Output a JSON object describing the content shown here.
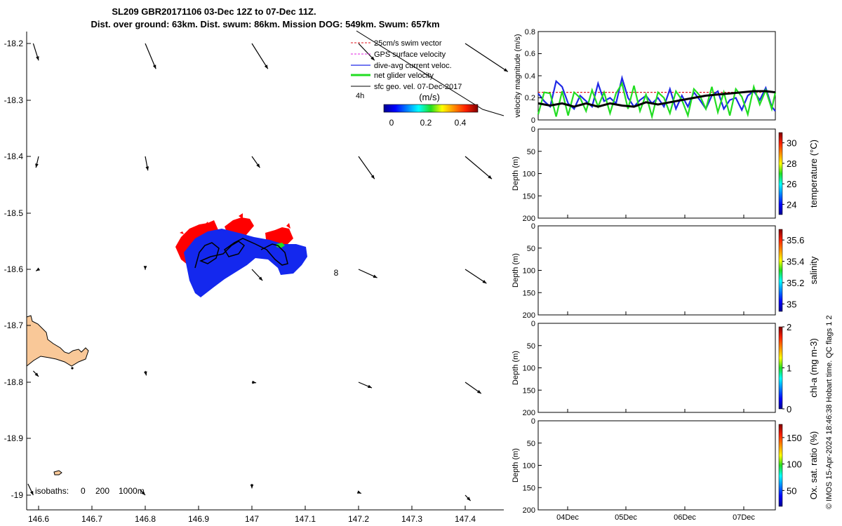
{
  "title": {
    "line1": "SL209 GBR20171106 03-Dec 12Z to 07-Dec 11Z.",
    "line2": "Dist. over ground: 63km. Dist. swum: 86km. Mission DOG: 549km. Swum: 657km"
  },
  "map": {
    "xticks": [
      "146.6",
      "146.7",
      "146.8",
      "146.9",
      "147",
      "147.1",
      "147.2",
      "147.3",
      "147.4"
    ],
    "yticks": [
      "-18.2",
      "-18.3",
      "-18.4",
      "-18.5",
      "-18.6",
      "-18.7",
      "-18.8",
      "-18.9",
      "-19"
    ],
    "xlim": [
      146.58,
      147.48
    ],
    "ylim": [
      -19.02,
      -18.17
    ],
    "legend": [
      {
        "label": "25cm/s swim vector",
        "color": "#e0141e"
      },
      {
        "label": "GPS surface velocity",
        "color": "#e020e0"
      },
      {
        "label": "dive-avg current veloc.",
        "color": "#1e28e6"
      },
      {
        "label": "net glider velocity",
        "color": "#22dd22"
      },
      {
        "label": "sfc geo. vel. 07-Dec-2017",
        "color": "#000000"
      }
    ],
    "time_mark": "4h",
    "colorbar_title": "(m/s)",
    "colorbar_ticks": [
      "0",
      "0.2",
      "0.4"
    ],
    "isobaths_label": "isobaths:",
    "isobaths_values": [
      "0",
      "200",
      "1000m"
    ],
    "point_label": "8",
    "land_color": "#f9c898",
    "arrow_grid": [
      [
        146.59,
        -18.2,
        0.01,
        -0.03
      ],
      [
        146.8,
        -18.2,
        0.02,
        -0.045
      ],
      [
        147.0,
        -18.2,
        0.03,
        -0.045
      ],
      [
        147.2,
        -18.2,
        0.03,
        -0.03
      ],
      [
        147.4,
        -18.2,
        0.08,
        -0.05
      ],
      [
        146.6,
        -18.4,
        -0.005,
        -0.02
      ],
      [
        146.8,
        -18.4,
        0.005,
        -0.025
      ],
      [
        147.0,
        -18.4,
        0.015,
        -0.02
      ],
      [
        147.2,
        -18.4,
        0.03,
        -0.04
      ],
      [
        147.4,
        -18.4,
        0.05,
        -0.04
      ],
      [
        146.6,
        -18.6,
        -0.005,
        -0.003
      ],
      [
        146.8,
        -18.6,
        0.0,
        -0.001
      ],
      [
        147.0,
        -18.6,
        0.02,
        -0.02
      ],
      [
        147.2,
        -18.6,
        0.035,
        -0.015
      ],
      [
        147.4,
        -18.6,
        0.04,
        -0.025
      ],
      [
        146.59,
        -18.78,
        0.01,
        -0.01
      ],
      [
        146.8,
        -18.78,
        0.002,
        -0.008
      ],
      [
        147.0,
        -18.8,
        0.008,
        -0.001
      ],
      [
        147.2,
        -18.8,
        0.025,
        -0.01
      ],
      [
        147.4,
        -18.8,
        0.03,
        -0.02
      ],
      [
        146.58,
        -18.98,
        0.01,
        -0.02
      ],
      [
        146.79,
        -18.99,
        0.01,
        -0.01
      ],
      [
        147.0,
        -18.98,
        0.0,
        -0.008
      ],
      [
        147.2,
        -18.995,
        0.005,
        -0.002
      ],
      [
        147.4,
        -19.0,
        0.01,
        -0.01
      ]
    ]
  },
  "velocity_panel": {
    "ylabel": "velocity magnitude (m/s)",
    "yticks": [
      "0",
      "0.2",
      "0.4",
      "0.6",
      "0.8"
    ],
    "ylim": [
      0,
      0.8
    ]
  },
  "depth_panels": [
    {
      "ylabel": "Depth (m)",
      "cb_label": "temperature (°C)",
      "cb_ticks": [
        "24",
        "26",
        "28",
        "30"
      ],
      "cb_range": [
        23,
        31
      ]
    },
    {
      "ylabel": "Depth (m)",
      "cb_label": "salinity",
      "cb_ticks": [
        "35",
        "35.2",
        "35.4",
        "35.6"
      ],
      "cb_range": [
        34.93,
        35.7
      ]
    },
    {
      "ylabel": "Depth (m)",
      "cb_label": "chl-a (mg m-3)",
      "cb_ticks": [
        "0",
        "1",
        "2"
      ],
      "cb_range": [
        0,
        2
      ]
    },
    {
      "ylabel": "Depth (m)",
      "cb_label": "Ox. sat. ratio (%)",
      "cb_ticks": [
        "50",
        "100",
        "150"
      ],
      "cb_range": [
        20,
        175
      ]
    }
  ],
  "depth_ticks": [
    "0",
    "50",
    "100",
    "150",
    "200"
  ],
  "xticks_time": [
    "04Dec",
    "05Dec",
    "06Dec",
    "07Dec"
  ],
  "credit": "© IMOS 15-Apr-2024 18:46:38 Hobart time. QC flags 1 2",
  "chart_data": [
    {
      "type": "line",
      "title": "",
      "ylabel": "velocity magnitude (m/s)",
      "ylim": [
        0,
        0.8
      ],
      "x_unit": "days since 03-Dec 12Z",
      "series": [
        {
          "name": "25cm/s swim vector",
          "color": "#e0141e",
          "x": [
            0,
            3.96
          ],
          "values": [
            0.25,
            0.25
          ]
        },
        {
          "name": "dive-avg current veloc.",
          "color": "#1e28e6",
          "x": [
            0,
            0.1,
            0.2,
            0.3,
            0.4,
            0.5,
            0.6,
            0.7,
            0.8,
            0.9,
            1.0,
            1.1,
            1.2,
            1.3,
            1.4,
            1.5,
            1.6,
            1.7,
            1.8,
            1.9,
            2.0,
            2.1,
            2.2,
            2.3,
            2.4,
            2.5,
            2.6,
            2.7,
            2.8,
            2.9,
            3.0,
            3.1,
            3.2,
            3.3,
            3.4,
            3.5,
            3.6,
            3.7,
            3.8,
            3.9,
            3.96
          ],
          "values": [
            0.24,
            0.17,
            0.12,
            0.35,
            0.3,
            0.15,
            0.1,
            0.22,
            0.17,
            0.12,
            0.33,
            0.17,
            0.2,
            0.15,
            0.38,
            0.2,
            0.12,
            0.18,
            0.22,
            0.15,
            0.2,
            0.12,
            0.28,
            0.1,
            0.22,
            0.12,
            0.25,
            0.18,
            0.1,
            0.22,
            0.26,
            0.1,
            0.18,
            0.2,
            0.09,
            0.22,
            0.26,
            0.18,
            0.29,
            0.12,
            0.08
          ]
        },
        {
          "name": "net glider velocity",
          "color": "#22dd22",
          "x": [
            0,
            0.1,
            0.2,
            0.3,
            0.4,
            0.5,
            0.6,
            0.7,
            0.8,
            0.9,
            1.0,
            1.1,
            1.2,
            1.3,
            1.4,
            1.5,
            1.6,
            1.7,
            1.8,
            1.9,
            2.0,
            2.1,
            2.2,
            2.3,
            2.4,
            2.5,
            2.6,
            2.7,
            2.8,
            2.9,
            3.0,
            3.1,
            3.2,
            3.3,
            3.4,
            3.5,
            3.6,
            3.7,
            3.8,
            3.9,
            3.96
          ],
          "values": [
            0.05,
            0.25,
            0.24,
            0.03,
            0.26,
            0.04,
            0.25,
            0.2,
            0.08,
            0.27,
            0.12,
            0.25,
            0.06,
            0.24,
            0.33,
            0.1,
            0.31,
            0.08,
            0.23,
            0.03,
            0.25,
            0.2,
            0.06,
            0.26,
            0.18,
            0.04,
            0.28,
            0.22,
            0.1,
            0.3,
            0.07,
            0.25,
            0.04,
            0.28,
            0.21,
            0.05,
            0.3,
            0.14,
            0.27,
            0.1,
            0.25
          ]
        },
        {
          "name": "sfc geo. vel. 07-Dec-2017",
          "color": "#000000",
          "x": [
            0,
            0.2,
            0.4,
            0.6,
            0.8,
            1.0,
            1.2,
            1.4,
            1.6,
            1.8,
            2.0,
            2.2,
            2.4,
            2.6,
            2.8,
            3.0,
            3.2,
            3.4,
            3.6,
            3.8,
            3.96
          ],
          "values": [
            0.15,
            0.13,
            0.15,
            0.12,
            0.15,
            0.12,
            0.15,
            0.13,
            0.12,
            0.16,
            0.14,
            0.16,
            0.18,
            0.2,
            0.22,
            0.23,
            0.24,
            0.25,
            0.26,
            0.26,
            0.25
          ]
        }
      ]
    },
    {
      "type": "heatmap",
      "ylabel": "Depth (m)",
      "colorbar": "temperature (°C)",
      "ylim": [
        200,
        0
      ]
    },
    {
      "type": "heatmap",
      "ylabel": "Depth (m)",
      "colorbar": "salinity",
      "ylim": [
        200,
        0
      ]
    },
    {
      "type": "heatmap",
      "ylabel": "Depth (m)",
      "colorbar": "chl-a (mg m-3)",
      "ylim": [
        200,
        0
      ]
    },
    {
      "type": "heatmap",
      "ylabel": "Depth (m)",
      "colorbar": "Ox. sat. ratio (%)",
      "ylim": [
        200,
        0
      ]
    }
  ]
}
